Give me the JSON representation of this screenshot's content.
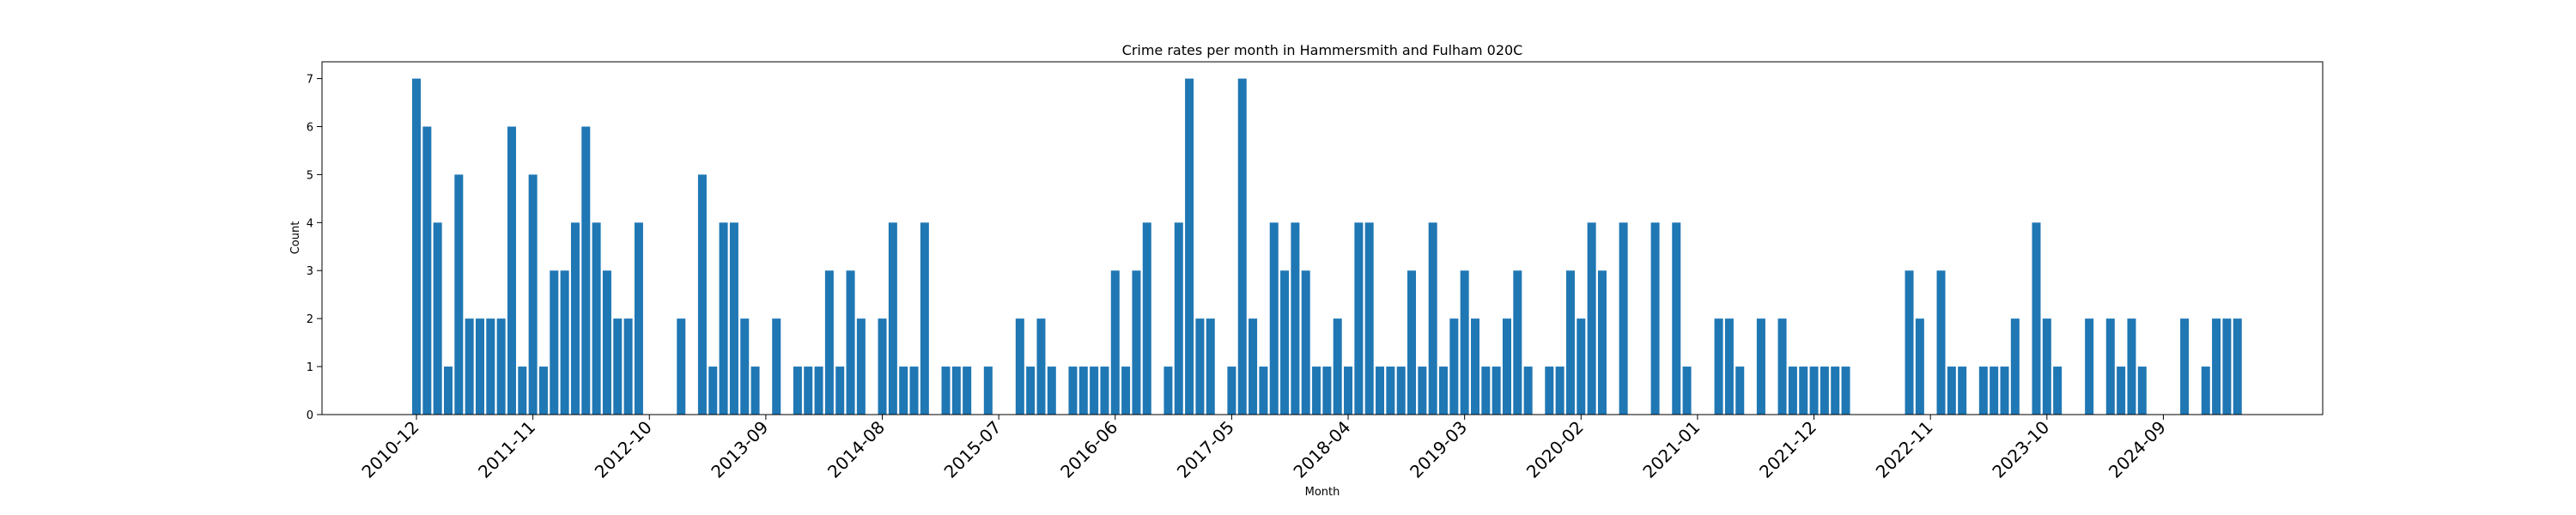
{
  "chart_data": {
    "type": "bar",
    "title": "Crime rates per month in Hammersmith and Fulham 020C",
    "xlabel": "Month",
    "ylabel": "Count",
    "ylim": [
      0,
      7.35
    ],
    "yticks": [
      0,
      1,
      2,
      3,
      4,
      5,
      6,
      7
    ],
    "grid": false,
    "bar_color": "#1f77b4",
    "xtick_labels": [
      "2010-12",
      "2011-11",
      "2012-10",
      "2013-09",
      "2014-08",
      "2015-07",
      "2016-06",
      "2017-05",
      "2018-04",
      "2019-03",
      "2020-02",
      "2021-01",
      "2021-12",
      "2022-11",
      "2023-10",
      "2024-09"
    ],
    "categories": [
      "2010-12",
      "2011-01",
      "2011-02",
      "2011-03",
      "2011-04",
      "2011-05",
      "2011-06",
      "2011-07",
      "2011-08",
      "2011-09",
      "2011-10",
      "2011-11",
      "2011-12",
      "2012-01",
      "2012-02",
      "2012-03",
      "2012-04",
      "2012-05",
      "2012-06",
      "2012-07",
      "2012-08",
      "2012-09",
      "2012-10",
      "2012-11",
      "2012-12",
      "2013-01",
      "2013-02",
      "2013-03",
      "2013-04",
      "2013-05",
      "2013-06",
      "2013-07",
      "2013-08",
      "2013-09",
      "2013-10",
      "2013-11",
      "2013-12",
      "2014-01",
      "2014-02",
      "2014-03",
      "2014-04",
      "2014-05",
      "2014-06",
      "2014-07",
      "2014-08",
      "2014-09",
      "2014-10",
      "2014-11",
      "2014-12",
      "2015-01",
      "2015-02",
      "2015-03",
      "2015-04",
      "2015-05",
      "2015-06",
      "2015-07",
      "2015-08",
      "2015-09",
      "2015-10",
      "2015-11",
      "2015-12",
      "2016-01",
      "2016-02",
      "2016-03",
      "2016-04",
      "2016-05",
      "2016-06",
      "2016-07",
      "2016-08",
      "2016-09",
      "2016-10",
      "2016-11",
      "2016-12",
      "2017-01",
      "2017-02",
      "2017-03",
      "2017-04",
      "2017-05",
      "2017-06",
      "2017-07",
      "2017-08",
      "2017-09",
      "2017-10",
      "2017-11",
      "2017-12",
      "2018-01",
      "2018-02",
      "2018-03",
      "2018-04",
      "2018-05",
      "2018-06",
      "2018-07",
      "2018-08",
      "2018-09",
      "2018-10",
      "2018-11",
      "2018-12",
      "2019-01",
      "2019-02",
      "2019-03",
      "2019-04",
      "2019-05",
      "2019-06",
      "2019-07",
      "2019-08",
      "2019-09",
      "2019-10",
      "2019-11",
      "2019-12",
      "2020-01",
      "2020-02",
      "2020-03",
      "2020-04",
      "2020-05",
      "2020-06",
      "2020-07",
      "2020-08",
      "2020-09",
      "2020-10",
      "2020-11",
      "2020-12",
      "2021-01",
      "2021-02",
      "2021-03",
      "2021-04",
      "2021-05",
      "2021-06",
      "2021-07",
      "2021-08",
      "2021-09",
      "2021-10",
      "2021-11",
      "2021-12",
      "2022-01",
      "2022-02",
      "2022-03",
      "2022-04",
      "2022-05",
      "2022-06",
      "2022-07",
      "2022-08",
      "2022-09",
      "2022-10",
      "2022-11",
      "2022-12",
      "2023-01",
      "2023-02",
      "2023-03",
      "2023-04",
      "2023-05",
      "2023-06",
      "2023-07",
      "2023-08",
      "2023-09",
      "2023-10",
      "2023-11",
      "2023-12",
      "2024-01",
      "2024-02",
      "2024-03",
      "2024-04",
      "2024-05",
      "2024-06",
      "2024-07",
      "2024-08",
      "2024-09",
      "2024-10",
      "2024-11",
      "2024-12",
      "2025-01",
      "2025-02",
      "2025-03",
      "2025-04"
    ],
    "values": [
      7,
      6,
      4,
      1,
      5,
      2,
      2,
      2,
      2,
      6,
      1,
      5,
      1,
      3,
      3,
      4,
      6,
      4,
      3,
      2,
      2,
      4,
      0,
      0,
      0,
      2,
      0,
      5,
      1,
      4,
      4,
      2,
      1,
      0,
      2,
      0,
      1,
      1,
      1,
      3,
      1,
      3,
      2,
      0,
      2,
      4,
      1,
      1,
      4,
      0,
      1,
      1,
      1,
      0,
      1,
      0,
      0,
      2,
      1,
      2,
      1,
      0,
      1,
      1,
      1,
      1,
      3,
      1,
      3,
      4,
      0,
      1,
      4,
      7,
      2,
      2,
      0,
      1,
      7,
      2,
      1,
      4,
      3,
      4,
      3,
      1,
      1,
      2,
      1,
      4,
      4,
      1,
      1,
      1,
      3,
      1,
      4,
      1,
      2,
      3,
      2,
      1,
      1,
      2,
      3,
      1,
      0,
      1,
      1,
      3,
      2,
      4,
      3,
      0,
      4,
      0,
      0,
      4,
      0,
      4,
      1,
      0,
      0,
      2,
      2,
      1,
      0,
      2,
      0,
      2,
      1,
      1,
      1,
      1,
      1,
      1,
      0,
      0,
      0,
      0,
      0,
      3,
      2,
      0,
      3,
      1,
      1,
      0,
      1,
      1,
      1,
      2,
      0,
      4,
      2,
      1,
      0,
      0,
      2,
      0,
      2,
      1,
      2,
      1,
      0,
      0,
      0,
      2,
      0,
      1,
      2,
      2,
      2
    ]
  }
}
